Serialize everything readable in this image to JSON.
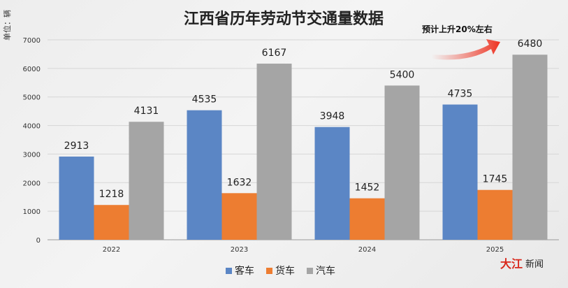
{
  "chart_data": {
    "type": "bar",
    "title": "江西省历年劳动节交通量数据",
    "unit_label": "单位：辆",
    "categories": [
      "2022",
      "2023",
      "2024",
      "2025"
    ],
    "series": [
      {
        "name": "客车",
        "color": "#5b86c5",
        "values": [
          2913,
          4535,
          3948,
          4735
        ]
      },
      {
        "name": "货车",
        "color": "#ed7d31",
        "values": [
          1218,
          1632,
          1452,
          1745
        ]
      },
      {
        "name": "汽车",
        "color": "#a5a5a5",
        "values": [
          4131,
          6167,
          5400,
          6480
        ]
      }
    ],
    "ylim": [
      0,
      7000
    ],
    "yticks": [
      0,
      1000,
      2000,
      3000,
      4000,
      5000,
      6000,
      7000
    ],
    "grid": true,
    "legend_position": "bottom-center",
    "annotation": {
      "text": "预计上升20%左右",
      "arrow_color": "#ee4a3a"
    }
  },
  "watermark": {
    "part1": "大江",
    "part2": "新闻"
  }
}
